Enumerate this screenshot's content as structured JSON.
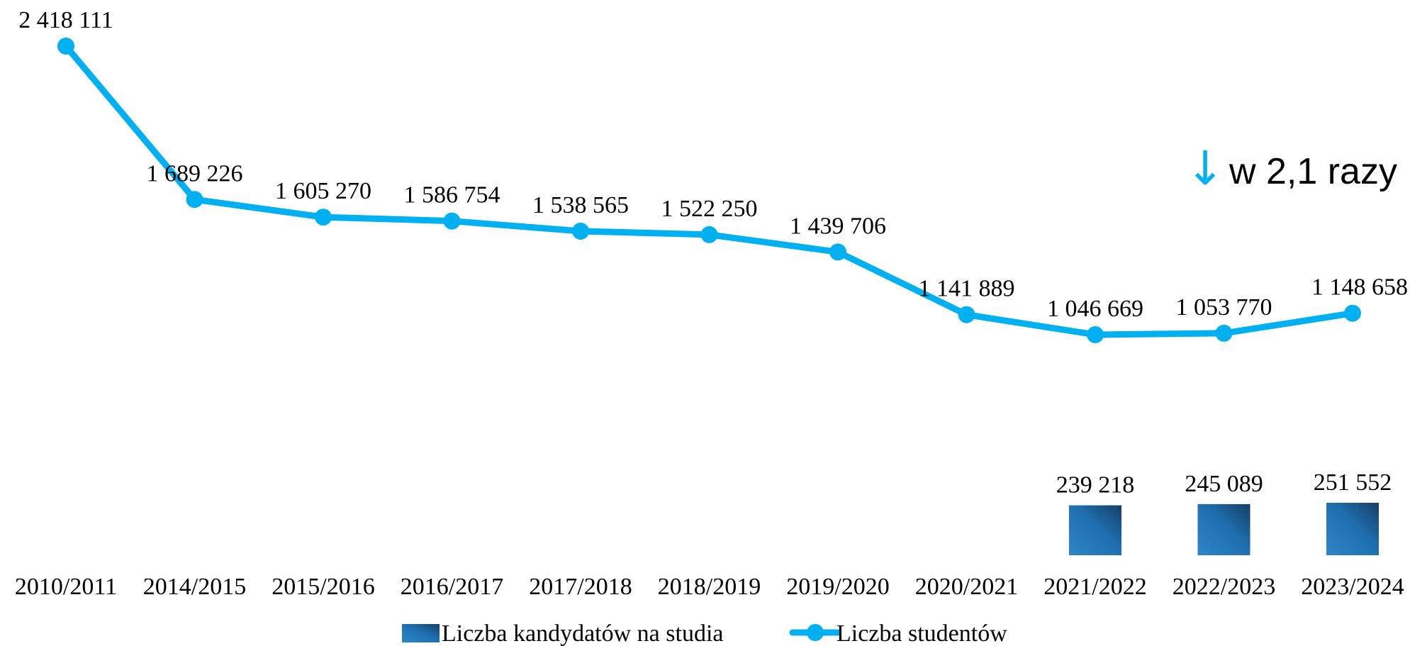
{
  "chart_data": {
    "type": "bar",
    "categories": [
      "2010/2011",
      "2014/2015",
      "2015/2016",
      "2016/2017",
      "2017/2018",
      "2018/2019",
      "2019/2020",
      "2020/2021",
      "2021/2022",
      "2022/2023",
      "2023/2024"
    ],
    "series": [
      {
        "name": "Liczba kandydatów na studia",
        "type": "bar",
        "values": [
          null,
          null,
          null,
          null,
          null,
          null,
          null,
          null,
          239218,
          245089,
          251552
        ],
        "labels": [
          "",
          "",
          "",
          "",
          "",
          "",
          "",
          "",
          "239 218",
          "245 089",
          "251 552"
        ],
        "color": "#1F6FB0"
      },
      {
        "name": "Liczba studentów",
        "type": "line",
        "values": [
          2418111,
          1689226,
          1605270,
          1586754,
          1538565,
          1522250,
          1439706,
          1141889,
          1046669,
          1053770,
          1148658
        ],
        "labels": [
          "2 418 111",
          "1 689 226",
          "1 605 270",
          "1 586 754",
          "1 538 565",
          "1 522 250",
          "1 439 706",
          "1 141 889",
          "1 046 669",
          "1 053 770",
          "1 148 658"
        ],
        "color": "#00B0F0"
      }
    ],
    "annotation": {
      "arrow": "↓",
      "text": "w 2,1 razy",
      "color": "#00B0F0"
    },
    "legend": {
      "position": "bottom"
    },
    "grid": false
  }
}
